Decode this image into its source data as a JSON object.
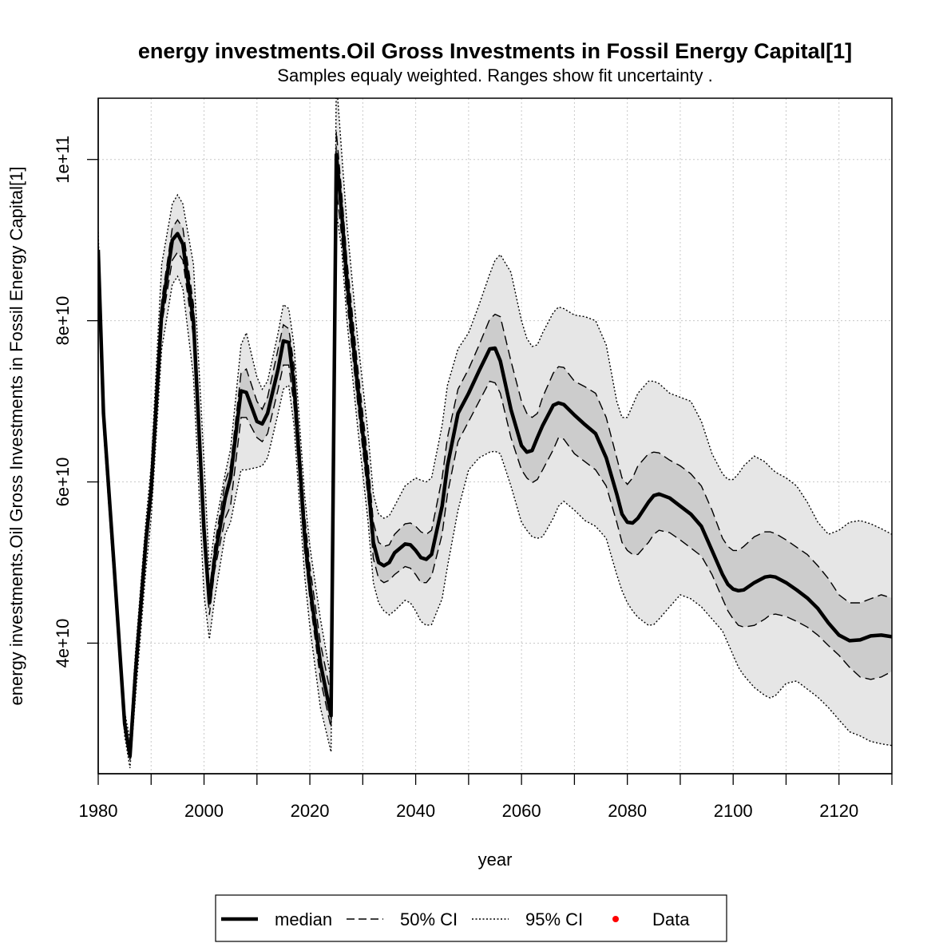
{
  "chart_data": {
    "type": "line",
    "title": "energy investments.Oil Gross Investments in Fossil Energy Capital[1]",
    "subtitle": "Samples equaly weighted. Ranges show  fit uncertainty .",
    "xlabel": "year",
    "ylabel": "energy investments.Oil Gross Investments in Fossil Energy Capital[1]",
    "xlim": [
      1980,
      2130
    ],
    "ylim": [
      23800000000.0,
      107600000000.0
    ],
    "x_ticks": [
      1980,
      2000,
      2020,
      2040,
      2060,
      2080,
      2100,
      2120
    ],
    "x_tick_labels": [
      "1980",
      "2000",
      "2020",
      "2040",
      "2060",
      "2080",
      "2100",
      "2120"
    ],
    "x_minor_ticks": [
      1990,
      2010,
      2030,
      2050,
      2070,
      2090,
      2110,
      2130
    ],
    "y_ticks": [
      40000000000.0,
      60000000000.0,
      80000000000.0,
      100000000000.0
    ],
    "y_tick_labels": [
      "4e+10",
      "6e+10",
      "8e+10",
      "1e+11"
    ],
    "grid": true,
    "legend_position": "bottom",
    "legend": [
      {
        "label": "median",
        "style": "solid"
      },
      {
        "label": "50% CI",
        "style": "dashed"
      },
      {
        "label": "95% CI",
        "style": "dotted"
      },
      {
        "label": "Data",
        "style": "point",
        "color": "#ff0000"
      }
    ],
    "colors": {
      "band95": "#e6e6e6",
      "band50": "#cccccc",
      "line": "#000000",
      "data": "#ff0000"
    },
    "x": [
      1980,
      1981,
      1983,
      1985,
      1986,
      1987,
      1989,
      1990,
      1992,
      1994,
      1995,
      1996,
      1998,
      2000,
      2001,
      2002,
      2004,
      2005,
      2007,
      2008,
      2010,
      2011,
      2012,
      2014,
      2015,
      2016,
      2017,
      2019,
      2020,
      2022,
      2024,
      2025,
      2026,
      2027,
      2029,
      2031,
      2032,
      2033,
      2034,
      2035,
      2036,
      2038,
      2039,
      2040,
      2041,
      2042,
      2043,
      2045,
      2046,
      2048,
      2050,
      2052,
      2054,
      2055,
      2056,
      2058,
      2060,
      2061,
      2062,
      2063,
      2064,
      2066,
      2067,
      2068,
      2070,
      2072,
      2074,
      2076,
      2078,
      2079,
      2080,
      2081,
      2082,
      2084,
      2085,
      2086,
      2088,
      2090,
      2092,
      2094,
      2096,
      2098,
      2099,
      2100,
      2101,
      2102,
      2104,
      2106,
      2107,
      2108,
      2110,
      2112,
      2114,
      2116,
      2118,
      2120,
      2122,
      2124,
      2126,
      2128,
      2130
    ],
    "median": [
      88.8,
      68.5,
      49.5,
      30.0,
      26.0,
      36.0,
      52.5,
      59.0,
      81.0,
      90.0,
      90.8,
      89.5,
      80.0,
      54.0,
      45.0,
      50.5,
      58.0,
      60.5,
      71.3,
      71.1,
      67.5,
      67.2,
      68.5,
      74.0,
      77.5,
      77.3,
      72.0,
      53.5,
      47.0,
      37.5,
      31.0,
      100.6,
      93.5,
      85.0,
      72.0,
      60.0,
      52.5,
      50.0,
      49.6,
      50.0,
      51.2,
      52.3,
      52.2,
      51.5,
      50.6,
      50.4,
      51.0,
      57.0,
      62.0,
      68.5,
      71.0,
      73.8,
      76.5,
      76.6,
      75.0,
      69.0,
      64.5,
      63.7,
      63.9,
      65.5,
      67.0,
      69.5,
      69.8,
      69.6,
      68.3,
      67.1,
      66.0,
      63.0,
      58.5,
      56.0,
      55.0,
      54.9,
      55.5,
      57.5,
      58.3,
      58.5,
      58.0,
      57.0,
      56.0,
      54.5,
      51.5,
      48.5,
      47.3,
      46.7,
      46.5,
      46.6,
      47.5,
      48.2,
      48.3,
      48.2,
      47.5,
      46.6,
      45.6,
      44.3,
      42.5,
      41.0,
      40.3,
      40.4,
      40.9,
      41.0,
      40.8
    ],
    "ci50_low": [
      88.0,
      68.0,
      49.0,
      29.5,
      25.5,
      35.0,
      51.5,
      58.5,
      79.5,
      87.5,
      88.5,
      87.5,
      78.0,
      52.0,
      43.5,
      49.0,
      55.5,
      57.0,
      68.0,
      68.0,
      65.5,
      65.0,
      66.0,
      71.5,
      74.5,
      74.5,
      69.5,
      51.5,
      45.5,
      35.5,
      29.5,
      96.5,
      90.5,
      82.5,
      70.0,
      58.0,
      50.5,
      48.0,
      47.5,
      47.8,
      48.5,
      49.5,
      49.3,
      48.5,
      47.5,
      47.5,
      48.3,
      53.5,
      58.5,
      65.0,
      67.5,
      70.0,
      72.5,
      72.3,
      71.0,
      65.5,
      61.5,
      60.5,
      59.9,
      60.3,
      61.5,
      64.0,
      65.5,
      65.3,
      63.5,
      62.5,
      61.5,
      59.5,
      55.0,
      52.5,
      51.5,
      51.0,
      51.0,
      52.5,
      53.5,
      54.0,
      53.7,
      52.8,
      51.8,
      50.8,
      48.5,
      45.5,
      44.0,
      43.0,
      42.2,
      42.0,
      42.2,
      43.0,
      43.5,
      43.6,
      43.3,
      42.7,
      42.0,
      41.0,
      39.7,
      38.5,
      37.0,
      35.8,
      35.5,
      35.8,
      36.5
    ],
    "ci50_high": [
      89.5,
      69.0,
      50.0,
      30.5,
      26.8,
      37.0,
      53.5,
      60.0,
      82.5,
      91.5,
      92.5,
      91.5,
      82.0,
      56.0,
      46.5,
      52.0,
      60.0,
      62.0,
      73.5,
      74.0,
      70.0,
      69.0,
      70.5,
      76.5,
      79.5,
      79.0,
      74.5,
      56.0,
      49.5,
      40.0,
      33.5,
      103.5,
      96.0,
      87.5,
      74.5,
      62.5,
      55.0,
      52.5,
      52.0,
      52.2,
      53.5,
      54.8,
      54.9,
      54.5,
      53.8,
      53.5,
      54.0,
      60.5,
      65.5,
      71.5,
      74.0,
      77.0,
      80.2,
      80.8,
      80.5,
      75.0,
      70.0,
      68.5,
      68.0,
      68.5,
      70.5,
      73.5,
      74.3,
      74.2,
      72.5,
      71.8,
      71.0,
      68.0,
      63.0,
      60.5,
      59.7,
      60.5,
      62.0,
      63.5,
      63.7,
      63.6,
      62.7,
      62.0,
      61.0,
      59.5,
      56.5,
      53.0,
      52.0,
      51.5,
      51.5,
      52.0,
      53.2,
      53.8,
      53.8,
      53.6,
      52.8,
      51.9,
      51.0,
      49.6,
      48.0,
      46.0,
      45.0,
      45.0,
      45.5,
      46.0,
      45.6
    ],
    "ci95_low": [
      90.0,
      66.5,
      47.5,
      28.5,
      24.5,
      33.0,
      49.0,
      55.5,
      76.5,
      84.5,
      85.5,
      84.0,
      73.0,
      46.0,
      40.5,
      45.5,
      53.5,
      55.0,
      61.5,
      61.5,
      61.8,
      62.0,
      63.0,
      68.5,
      71.5,
      72.0,
      67.0,
      48.5,
      42.0,
      32.0,
      26.5,
      93.5,
      89.0,
      80.0,
      67.0,
      55.0,
      47.5,
      45.0,
      44.0,
      43.5,
      44.0,
      45.3,
      45.0,
      44.0,
      42.7,
      42.2,
      42.3,
      45.5,
      49.5,
      56.5,
      61.5,
      63.0,
      63.7,
      63.8,
      63.5,
      59.5,
      55.0,
      54.0,
      53.2,
      53.0,
      53.2,
      55.5,
      57.0,
      57.6,
      56.5,
      55.2,
      54.5,
      53.0,
      48.5,
      46.5,
      45.0,
      44.0,
      43.2,
      42.2,
      42.3,
      43.0,
      44.5,
      46.0,
      45.5,
      44.5,
      43.0,
      41.5,
      40.0,
      38.5,
      37.0,
      36.0,
      34.5,
      33.5,
      33.2,
      33.5,
      35.0,
      35.3,
      34.3,
      33.3,
      32.0,
      30.5,
      29.0,
      28.5,
      27.8,
      27.5,
      27.3
    ],
    "ci95_high": [
      91.0,
      70.0,
      51.0,
      31.5,
      28.0,
      38.5,
      55.0,
      62.0,
      87.0,
      94.5,
      95.6,
      94.5,
      87.0,
      62.5,
      49.0,
      54.0,
      61.0,
      64.0,
      77.0,
      78.5,
      73.0,
      71.5,
      72.5,
      78.5,
      82.0,
      81.5,
      77.0,
      58.5,
      52.0,
      43.0,
      35.5,
      110.0,
      101.0,
      92.0,
      78.0,
      66.0,
      58.5,
      56.0,
      55.5,
      55.8,
      57.0,
      59.5,
      60.0,
      60.5,
      60.2,
      60.0,
      60.5,
      67.0,
      72.0,
      76.5,
      78.5,
      82.0,
      85.8,
      87.5,
      88.2,
      86.0,
      80.0,
      77.8,
      76.8,
      77.0,
      78.5,
      81.0,
      81.7,
      81.5,
      80.7,
      80.5,
      80.0,
      77.0,
      70.0,
      68.0,
      68.0,
      69.5,
      71.0,
      72.5,
      72.5,
      72.2,
      71.0,
      70.5,
      70.0,
      67.5,
      63.5,
      61.0,
      60.3,
      60.3,
      61.0,
      62.0,
      63.2,
      62.5,
      61.8,
      61.2,
      60.5,
      59.5,
      57.5,
      55.0,
      53.5,
      54.0,
      55.0,
      55.2,
      54.8,
      54.2,
      53.5
    ],
    "data_points": []
  }
}
